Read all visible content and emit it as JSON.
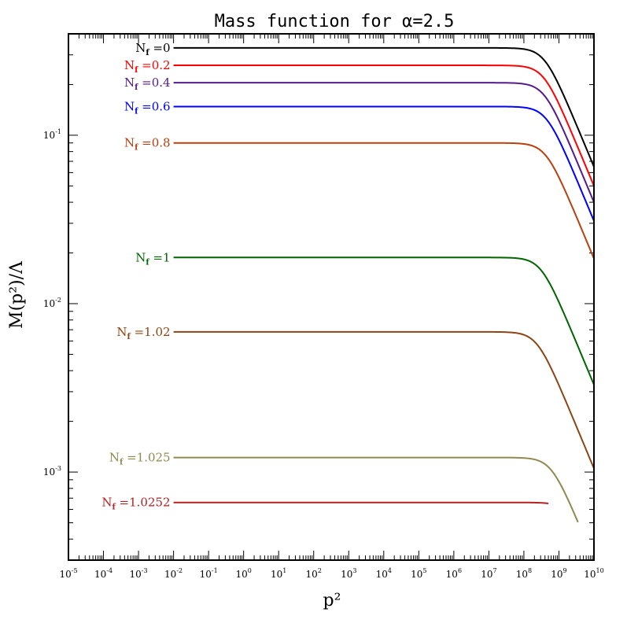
{
  "chart_data": {
    "type": "line",
    "title": "Mass function for α=2.5",
    "xlabel": "p²",
    "ylabel": "M(p²)/Λ",
    "xscale": "log",
    "yscale": "log",
    "xlim": [
      1e-05,
      10000000000.0
    ],
    "ylim": [
      0.0003,
      0.4
    ],
    "grid": false,
    "legend": "inline labels at left end of each curve",
    "x_tick_labels": [
      {
        "base": "10",
        "exp": "-5"
      },
      {
        "base": "10",
        "exp": "-4"
      },
      {
        "base": "10",
        "exp": "-3"
      },
      {
        "base": "10",
        "exp": "-2"
      },
      {
        "base": "10",
        "exp": "-1"
      },
      {
        "base": "10",
        "exp": "0"
      },
      {
        "base": "10",
        "exp": "1"
      },
      {
        "base": "10",
        "exp": "2"
      },
      {
        "base": "10",
        "exp": "3"
      },
      {
        "base": "10",
        "exp": "4"
      },
      {
        "base": "10",
        "exp": "5"
      },
      {
        "base": "10",
        "exp": "6"
      },
      {
        "base": "10",
        "exp": "7"
      },
      {
        "base": "10",
        "exp": "8"
      },
      {
        "base": "10",
        "exp": "9"
      },
      {
        "base": "10",
        "exp": "10"
      }
    ],
    "y_tick_labels": [
      {
        "base": "10",
        "exp": "-3",
        "value": 0.001
      },
      {
        "base": "10",
        "exp": "-2",
        "value": 0.01
      },
      {
        "base": "10",
        "exp": "-1",
        "value": 0.1
      }
    ],
    "series": [
      {
        "name": "0",
        "label_prefix": "N",
        "label_sub": "f",
        "label_suffix": " =0",
        "color": "#000000",
        "plateau": 0.33,
        "knee_x": 200000000.0,
        "end_value": 0.065,
        "x_start": 0.01
      },
      {
        "name": "0.2",
        "label_prefix": "N",
        "label_sub": "f",
        "label_suffix": " =0.2",
        "color": "#ff0000",
        "plateau": 0.26,
        "knee_x": 150000000.0,
        "end_value": 0.05,
        "x_start": 0.01
      },
      {
        "name": "0.4",
        "label_prefix": "N",
        "label_sub": "f",
        "label_suffix": " =0.4",
        "color": "#551a8b",
        "plateau": 0.205,
        "knee_x": 100000000.0,
        "end_value": 0.04,
        "x_start": 0.01
      },
      {
        "name": "0.6",
        "label_prefix": "N",
        "label_sub": "f",
        "label_suffix": " =0.6",
        "color": "#0000ff",
        "plateau": 0.148,
        "knee_x": 80000000.0,
        "end_value": 0.031,
        "x_start": 0.01
      },
      {
        "name": "0.8",
        "label_prefix": "N",
        "label_sub": "f",
        "label_suffix": " =0.8",
        "color": "#b8400e",
        "plateau": 0.09,
        "knee_x": 50000000.0,
        "end_value": 0.0185,
        "x_start": 0.01
      },
      {
        "name": "1",
        "label_prefix": "N",
        "label_sub": "f",
        "label_suffix": " =1",
        "color": "#006400",
        "plateau": 0.0188,
        "knee_x": 15000000.0,
        "end_value": 0.0033,
        "x_start": 0.01
      },
      {
        "name": "1.02",
        "label_prefix": "N",
        "label_sub": "f",
        "label_suffix": " =1.02",
        "color": "#8b4513",
        "plateau": 0.0068,
        "knee_x": 5000000.0,
        "end_value": 0.00105,
        "x_start": 0.01
      },
      {
        "name": "1.025",
        "label_prefix": "N",
        "label_sub": "f",
        "label_suffix": " =1.025",
        "color": "#8f8a50",
        "plateau": 0.00122,
        "knee_x": 1000000.0,
        "end_value": 0.0003,
        "x_start": 0.01,
        "x_end": 3500000000.0
      },
      {
        "name": "1.0252",
        "label_prefix": "N",
        "label_sub": "f",
        "label_suffix": " =1.0252",
        "color": "#b22222",
        "plateau": 0.00066,
        "knee_x": 700000.0,
        "end_value": 0.0003,
        "x_start": 0.01,
        "x_end": 500000000.0
      }
    ]
  }
}
